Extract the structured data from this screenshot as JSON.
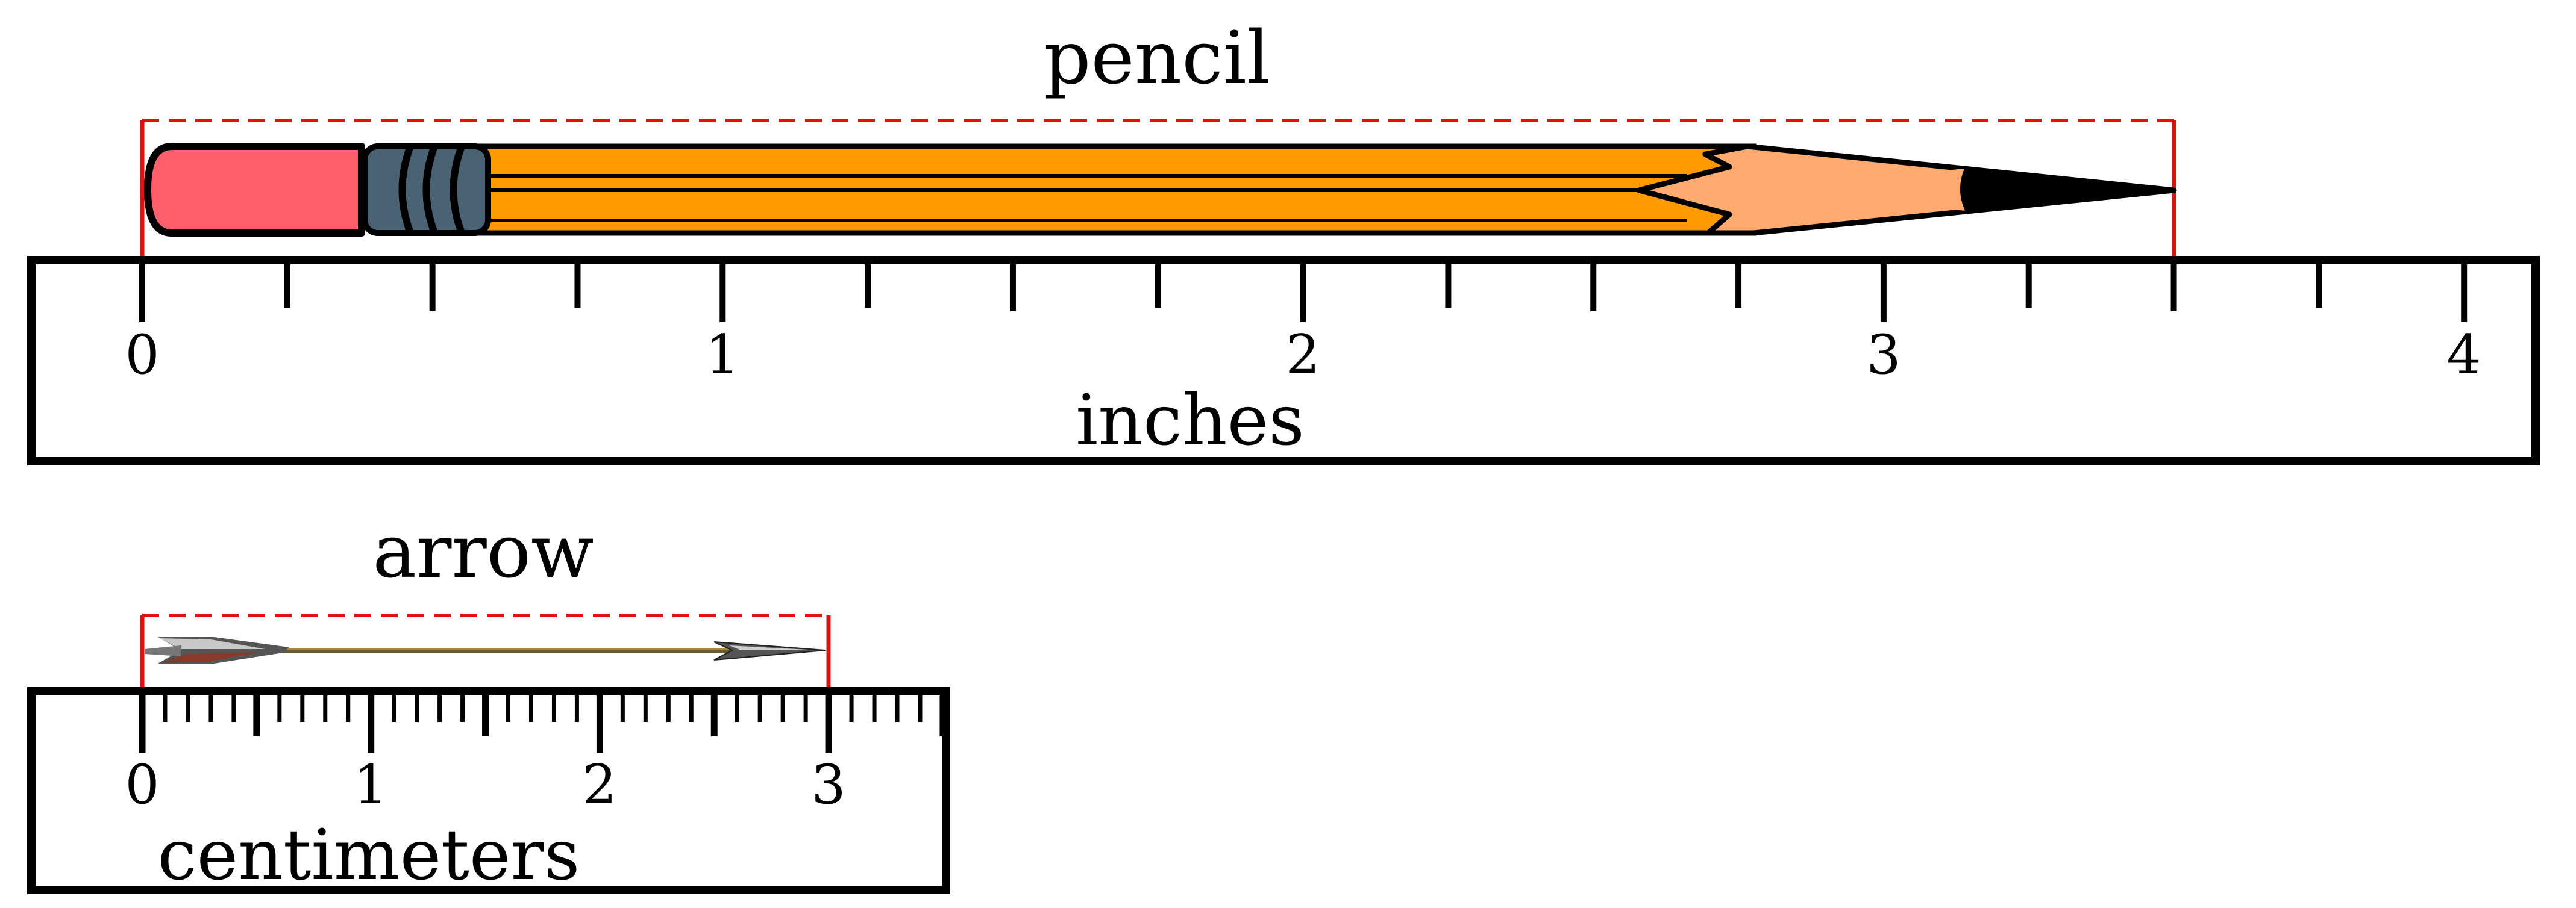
{
  "objects": [
    {
      "name": "pencil",
      "icon": "pencil-icon",
      "ruler_unit": "inches",
      "ruler_max": 4,
      "subdivisions_per_unit": 4,
      "measured_length": 3.5,
      "tick_labels": [
        "0",
        "1",
        "2",
        "3",
        "4"
      ]
    },
    {
      "name": "arrow",
      "icon": "arrow-icon",
      "ruler_unit": "centimeters",
      "ruler_max": 3.5,
      "subdivisions_per_unit": 10,
      "measured_length": 3,
      "tick_labels": [
        "0",
        "1",
        "2",
        "3"
      ]
    }
  ],
  "colors": {
    "bracket": "#dd1111",
    "pencil_body": "#ff9900",
    "pencil_eraser": "#ff5f6d",
    "pencil_ferrule": "#4a6374",
    "pencil_wood": "#ffaa6e"
  }
}
